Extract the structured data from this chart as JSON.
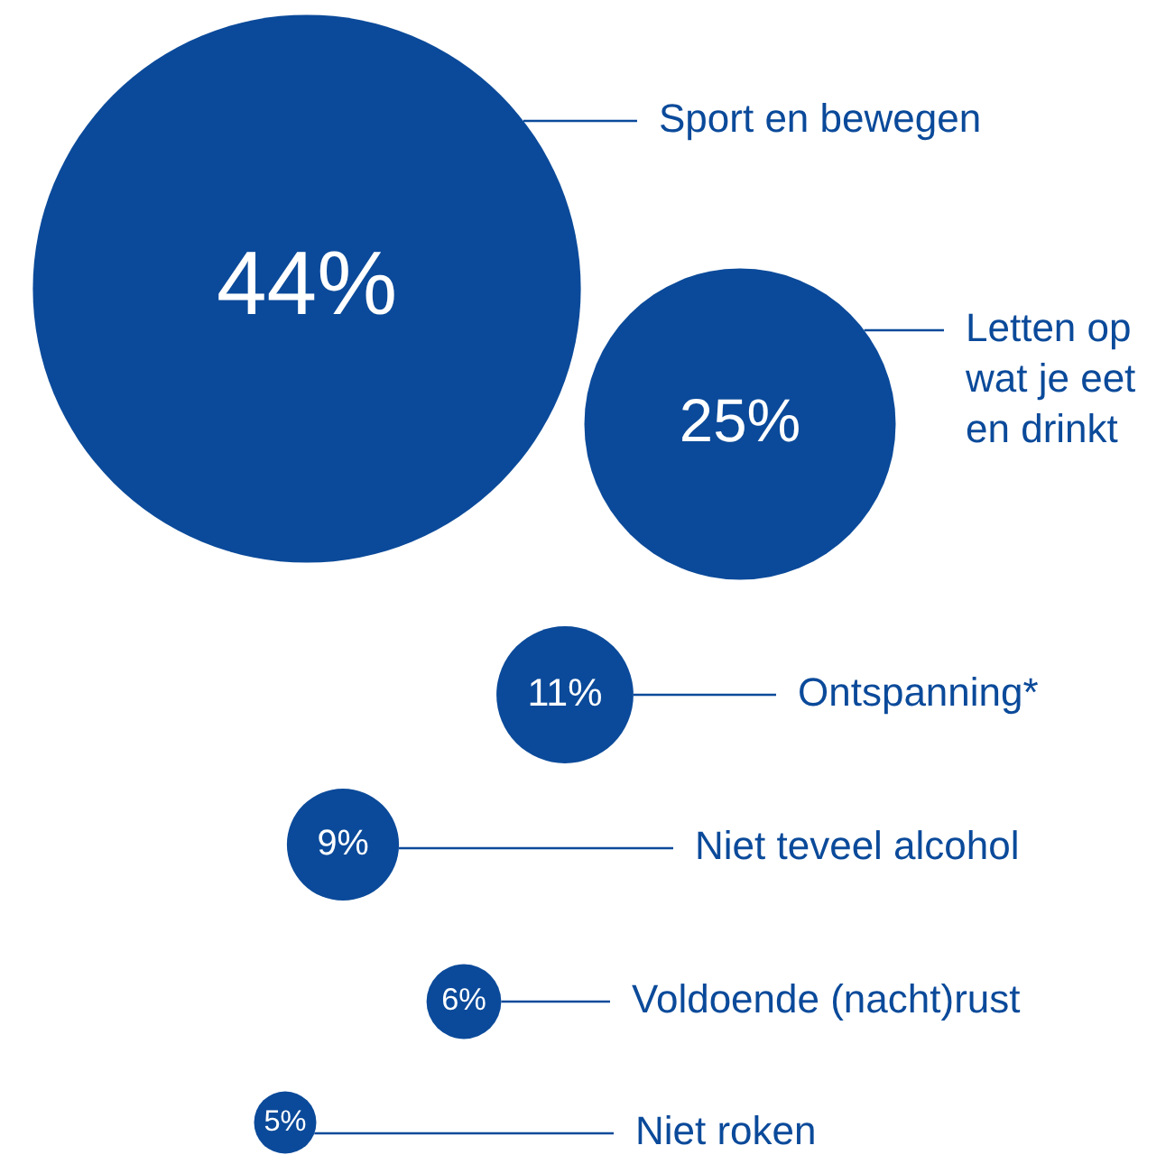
{
  "chart_data": {
    "type": "other",
    "categories": [
      "Sport en bewegen",
      "Letten op wat je eet en drinkt",
      "Ontspanning*",
      "Niet teveel alcohol",
      "Voldoende (nacht)rust",
      "Niet roken"
    ],
    "values": [
      44,
      25,
      11,
      9,
      6,
      5
    ],
    "value_labels": [
      "44%",
      "25%",
      "11%",
      "9%",
      "6%",
      "5%"
    ],
    "color": "#0b4a9a"
  }
}
